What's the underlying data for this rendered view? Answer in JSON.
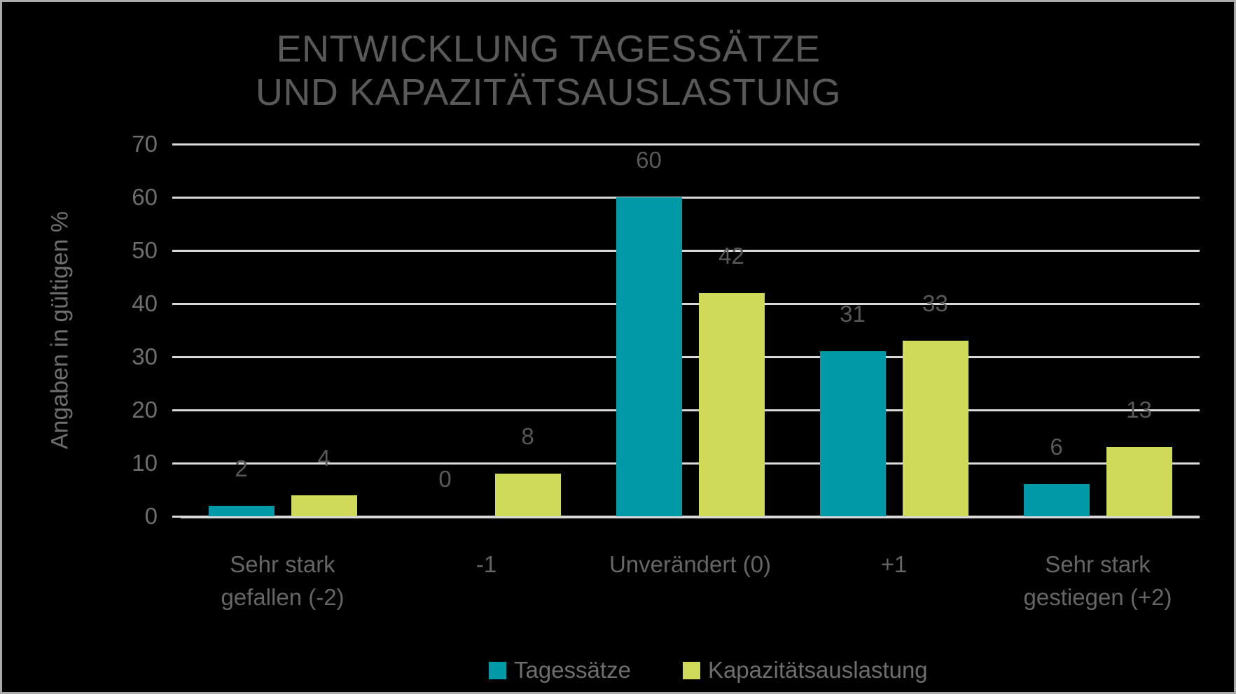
{
  "title": {
    "line1": "ENTWICKLUNG TAGESSÄTZE",
    "line2": "UND KAPAZITÄTSAUSLASTUNG"
  },
  "chart_data": {
    "type": "bar",
    "title": "ENTWICKLUNG TAGESSÄTZE UND KAPAZITÄTSAUSLASTUNG",
    "xlabel": "",
    "ylabel": "Angaben in gültigen %",
    "ylim": [
      0,
      70
    ],
    "yticks": [
      0,
      10,
      20,
      30,
      40,
      50,
      60,
      70
    ],
    "grid": true,
    "legend_position": "bottom",
    "categories": [
      "Sehr stark gefallen (-2)",
      "-1",
      "Unverändert (0)",
      "+1",
      "Sehr stark gestiegen (+2)"
    ],
    "category_label_lines": [
      [
        "Sehr stark",
        "gefallen (-2)"
      ],
      [
        "-1"
      ],
      [
        "Unverändert (0)"
      ],
      [
        "+1"
      ],
      [
        "Sehr stark",
        "gestiegen (+2)"
      ]
    ],
    "series": [
      {
        "name": "Tagessätze",
        "color": "#0099A8",
        "values": [
          2,
          0,
          60,
          31,
          6
        ]
      },
      {
        "name": "Kapazitätsauslastung",
        "color": "#CFDB58",
        "values": [
          4,
          8,
          42,
          33,
          13
        ]
      }
    ]
  },
  "colors": {
    "background": "#000000",
    "border": "#ABABAB",
    "gridline": "#D9D9D9",
    "title_text": "#595959",
    "axis_text": "#6e6e6e",
    "data_label_text": "#595959"
  }
}
